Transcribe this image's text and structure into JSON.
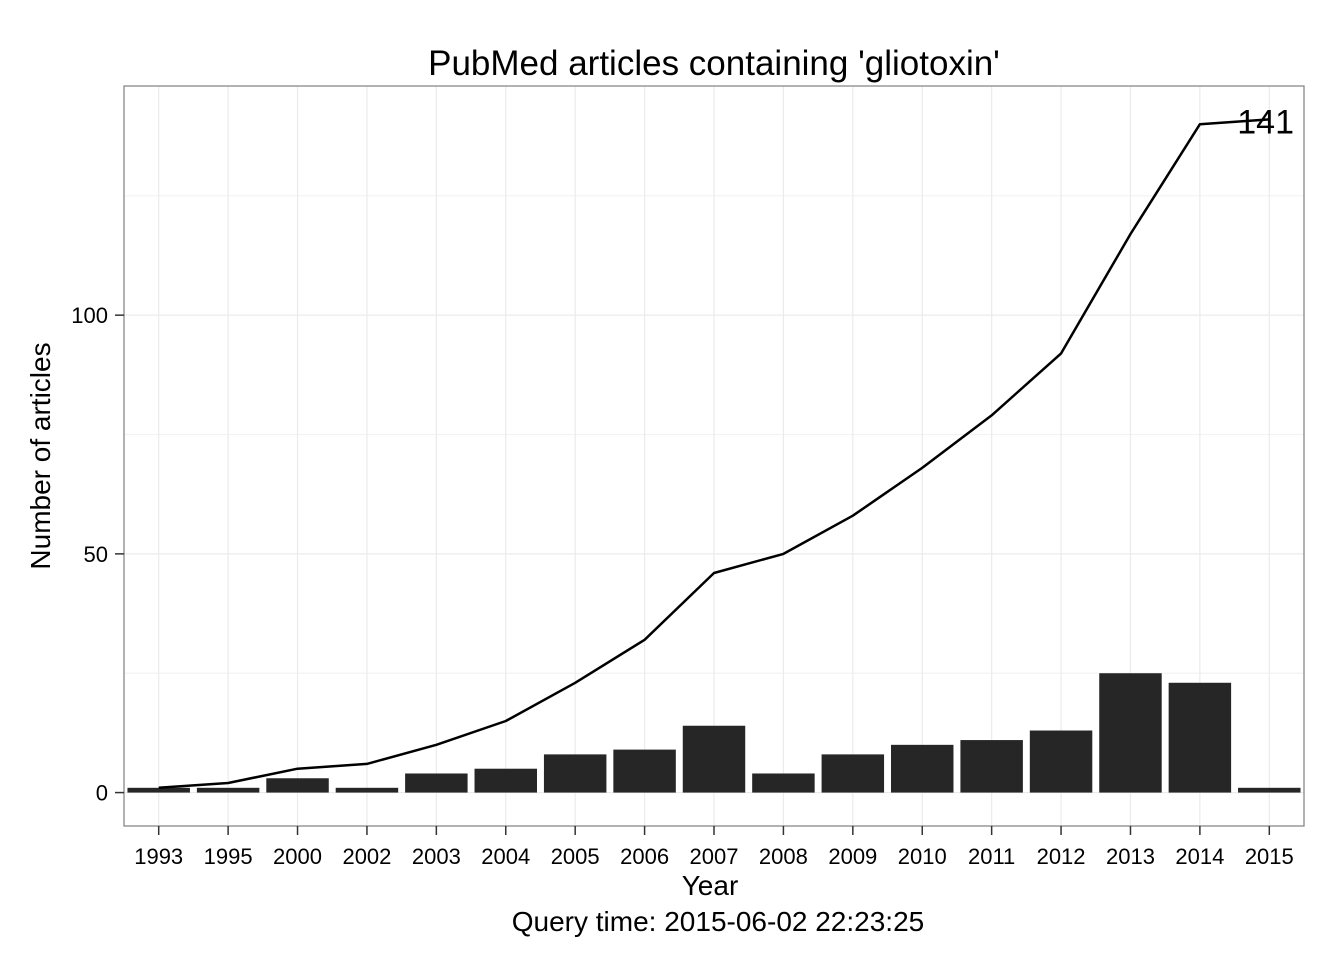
{
  "chart_data": {
    "type": "bar",
    "title": "PubMed articles containing 'gliotoxin'",
    "xlabel": "Year",
    "ylabel": "Number of articles",
    "caption": "Query time: 2015-06-02 22:23:25",
    "categories": [
      "1993",
      "1995",
      "2000",
      "2002",
      "2003",
      "2004",
      "2005",
      "2006",
      "2007",
      "2008",
      "2009",
      "2010",
      "2011",
      "2012",
      "2013",
      "2014",
      "2015"
    ],
    "series": [
      {
        "type": "bar",
        "values": [
          1,
          1,
          3,
          1,
          4,
          5,
          8,
          9,
          14,
          4,
          8,
          10,
          11,
          13,
          25,
          23,
          1
        ]
      },
      {
        "type": "line",
        "values": [
          1,
          2,
          5,
          6,
          10,
          15,
          23,
          32,
          46,
          50,
          58,
          68,
          79,
          92,
          117,
          140,
          141
        ]
      }
    ],
    "ylim": [
      -7,
      148
    ],
    "yticks": [
      0,
      50,
      100
    ],
    "annotation": "141",
    "grid": true,
    "legend": "none",
    "colors": {
      "bar": "#262626",
      "line": "#000000",
      "grid": "#ebebeb",
      "border": "#7f7f7f"
    }
  }
}
